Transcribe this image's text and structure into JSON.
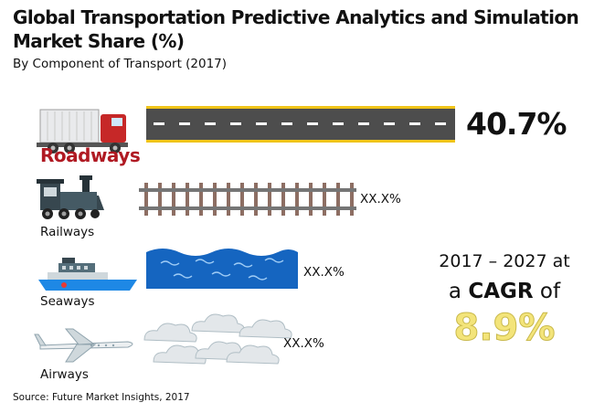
{
  "header": {
    "title": "Global Transportation Predictive Analytics and Simulation Market Share (%)",
    "subtitle": "By Component of Transport (2017)"
  },
  "chart_data": {
    "type": "bar",
    "title": "Global Transportation Predictive Analytics and Simulation Market Share (%)",
    "subtitle": "By Component of Transport (2017)",
    "categories": [
      "Roadways",
      "Railways",
      "Seaways",
      "Airways"
    ],
    "value_labels": [
      "40.7%",
      "XX.X%",
      "XX.X%",
      "XX.X%"
    ],
    "values": [
      40.7,
      null,
      null,
      null
    ]
  },
  "callout": {
    "period_text": "2017 – 2027 at",
    "cagr_prefix": "a",
    "cagr_word": "CAGR",
    "cagr_suffix": "of",
    "cagr_value": "8.9%"
  },
  "source": "Source: Future Market Insights, 2017",
  "colors": {
    "highlight_label": "#b01a23",
    "road": "#4d4d4d",
    "road_edge": "#f0c419",
    "sea": "#1565c0",
    "rail_track": "#8d6e63",
    "cagr_value": "#f3e47a"
  }
}
